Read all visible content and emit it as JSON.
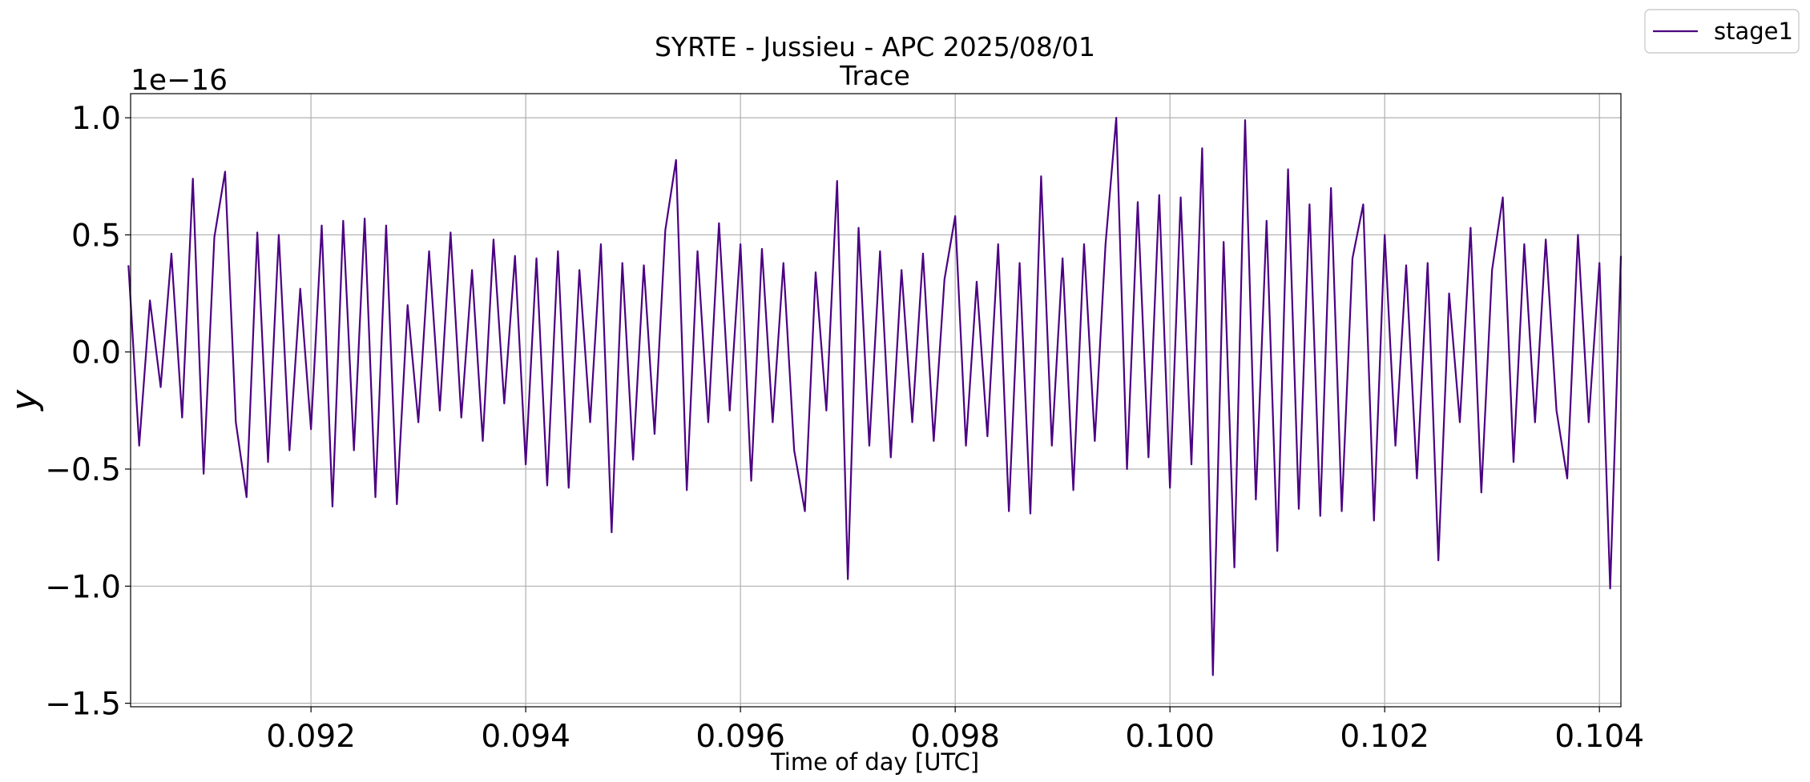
{
  "chart_data": {
    "type": "line",
    "title": "SYRTE - Jussieu - APC 2025/08/01",
    "subtitle": "Trace",
    "xlabel": "Time of day [UTC]",
    "ylabel": "y",
    "y_offset_label": "1e−16",
    "grid": true,
    "legend": "upper right",
    "xlim": [
      0.09032,
      0.1042
    ],
    "ylim": [
      -1.515,
      1.103
    ],
    "xticks": [
      0.092,
      0.094,
      0.096,
      0.098,
      {
        "value": 0.1,
        "label": "0.100"
      },
      0.102,
      0.104
    ],
    "yticks": [
      {
        "value": -1.5,
        "label": "−1.5"
      },
      {
        "value": -1,
        "label": "−1.0"
      },
      {
        "value": -0.5,
        "label": "−0.5"
      },
      {
        "value": 0,
        "label": "0.0"
      },
      0.5,
      {
        "value": 1,
        "label": "1.0"
      }
    ],
    "x": [
      0.0903,
      0.0904,
      0.0905,
      0.0906,
      0.0907,
      0.0908,
      0.0909,
      0.091,
      0.0911,
      0.0912,
      0.0913,
      0.0914,
      0.0915,
      0.0916,
      0.0917,
      0.0918,
      0.0919,
      0.092,
      0.0921,
      0.0922,
      0.0923,
      0.0924,
      0.0925,
      0.0926,
      0.0927,
      0.0928,
      0.0929,
      0.093,
      0.0931,
      0.0932,
      0.0933,
      0.0934,
      0.0935,
      0.0936,
      0.0937,
      0.0938,
      0.0939,
      0.094,
      0.0941,
      0.0942,
      0.0943,
      0.0944,
      0.0945,
      0.0946,
      0.0947,
      0.0948,
      0.0949,
      0.095,
      0.0951,
      0.0952,
      0.0953,
      0.0954,
      0.0955,
      0.0956,
      0.0957,
      0.0958,
      0.0959,
      0.096,
      0.0961,
      0.0962,
      0.0963,
      0.0964,
      0.0965,
      0.0966,
      0.0967,
      0.0968,
      0.0969,
      0.097,
      0.0971,
      0.0972,
      0.0973,
      0.0974,
      0.0975,
      0.0976,
      0.0977,
      0.0978,
      0.0979,
      0.098,
      0.0981,
      0.0982,
      0.0983,
      0.0984,
      0.0985,
      0.0986,
      0.0987,
      0.0988,
      0.0989,
      0.099,
      0.0991,
      0.0992,
      0.0993,
      0.0994,
      0.0995,
      0.0996,
      0.0997,
      0.0998,
      0.0999,
      0.1,
      0.1001,
      0.1002,
      0.1003,
      0.1004,
      0.1005,
      0.1006,
      0.1007,
      0.1008,
      0.1009,
      0.101,
      0.1011,
      0.1012,
      0.1013,
      0.1014,
      0.1015,
      0.1016,
      0.1017,
      0.1018,
      0.1019,
      0.102,
      0.1021,
      0.1022,
      0.1023,
      0.1024,
      0.1025,
      0.1026,
      0.1027,
      0.1028,
      0.1029,
      0.103,
      0.1031,
      0.1032,
      0.1033,
      0.1034,
      0.1035,
      0.1036,
      0.1037,
      0.1038,
      0.1039,
      0.104,
      0.1041,
      0.1042
    ],
    "series": [
      {
        "name": "stage1",
        "color": "#4b0082",
        "values": [
          0.37,
          -0.4,
          0.22,
          -0.15,
          0.42,
          -0.28,
          0.74,
          -0.52,
          0.49,
          0.77,
          -0.3,
          -0.62,
          0.51,
          -0.47,
          0.5,
          -0.42,
          0.27,
          -0.33,
          0.54,
          -0.66,
          0.56,
          -0.42,
          0.57,
          -0.62,
          0.54,
          -0.65,
          0.2,
          -0.3,
          0.43,
          -0.25,
          0.51,
          -0.28,
          0.35,
          -0.38,
          0.48,
          -0.22,
          0.41,
          -0.48,
          0.4,
          -0.57,
          0.43,
          -0.58,
          0.35,
          -0.3,
          0.46,
          -0.77,
          0.38,
          -0.46,
          0.37,
          -0.35,
          0.52,
          0.82,
          -0.59,
          0.43,
          -0.3,
          0.55,
          -0.25,
          0.46,
          -0.55,
          0.44,
          -0.3,
          0.38,
          -0.42,
          -0.68,
          0.34,
          -0.25,
          0.73,
          -0.97,
          0.53,
          -0.4,
          0.43,
          -0.45,
          0.35,
          -0.3,
          0.42,
          -0.38,
          0.31,
          0.58,
          -0.4,
          0.3,
          -0.36,
          0.46,
          -0.68,
          0.38,
          -0.69,
          0.75,
          -0.4,
          0.4,
          -0.59,
          0.46,
          -0.38,
          0.46,
          1.0,
          -0.5,
          0.64,
          -0.45,
          0.67,
          -0.58,
          0.66,
          -0.48,
          0.87,
          -1.38,
          0.47,
          -0.92,
          0.99,
          -0.63,
          0.56,
          -0.85,
          0.78,
          -0.67,
          0.63,
          -0.7,
          0.7,
          -0.68,
          0.4,
          0.63,
          -0.72,
          0.5,
          -0.4,
          0.37,
          -0.54,
          0.38,
          -0.89,
          0.25,
          -0.3,
          0.53,
          -0.6,
          0.35,
          0.66,
          -0.47,
          0.46,
          -0.3,
          0.48,
          -0.25,
          -0.54,
          0.5,
          -0.3,
          0.38,
          -1.01,
          0.41
        ]
      }
    ]
  }
}
